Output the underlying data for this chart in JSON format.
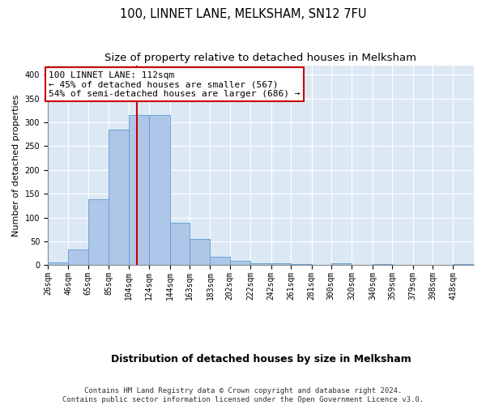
{
  "title": "100, LINNET LANE, MELKSHAM, SN12 7FU",
  "subtitle": "Size of property relative to detached houses in Melksham",
  "xlabel": "Distribution of detached houses by size in Melksham",
  "ylabel": "Number of detached properties",
  "bin_labels": [
    "26sqm",
    "46sqm",
    "65sqm",
    "85sqm",
    "104sqm",
    "124sqm",
    "144sqm",
    "163sqm",
    "183sqm",
    "202sqm",
    "222sqm",
    "242sqm",
    "261sqm",
    "281sqm",
    "300sqm",
    "320sqm",
    "340sqm",
    "359sqm",
    "379sqm",
    "398sqm",
    "418sqm"
  ],
  "bin_edges": [
    26,
    46,
    65,
    85,
    104,
    124,
    144,
    163,
    183,
    202,
    222,
    242,
    261,
    281,
    300,
    320,
    340,
    359,
    379,
    398,
    418
  ],
  "bar_heights": [
    6,
    33,
    138,
    285,
    315,
    315,
    90,
    56,
    17,
    9,
    5,
    4,
    3,
    0,
    4,
    0,
    3,
    0,
    0,
    0,
    3
  ],
  "bar_color": "#aec6e8",
  "bar_edge_color": "#5b9bd5",
  "property_size": 112,
  "vline_color": "#cc0000",
  "annotation_line1": "100 LINNET LANE: 112sqm",
  "annotation_line2": "← 45% of detached houses are smaller (567)",
  "annotation_line3": "54% of semi-detached houses are larger (686) →",
  "annotation_box_color": "#ffffff",
  "annotation_box_edge": "#cc0000",
  "ylim": [
    0,
    420
  ],
  "background_color": "#dce9f5",
  "grid_color": "#ffffff",
  "footer_text": "Contains HM Land Registry data © Crown copyright and database right 2024.\nContains public sector information licensed under the Open Government Licence v3.0.",
  "title_fontsize": 10.5,
  "subtitle_fontsize": 9.5,
  "xlabel_fontsize": 9,
  "ylabel_fontsize": 8,
  "tick_fontsize": 7,
  "annotation_fontsize": 8,
  "footer_fontsize": 6.5
}
